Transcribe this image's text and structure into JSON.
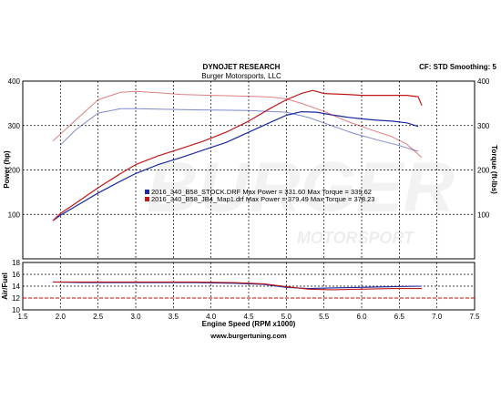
{
  "header": {
    "title": "DYNOJET RESEARCH",
    "subtitle": "Burger Motorsports, LLC",
    "settings": "CF: STD  Smoothing: 5"
  },
  "footer": {
    "url": "www.burgertuning.com"
  },
  "watermark": {
    "big": "BURGER",
    "small": "MOTORSPORT"
  },
  "colors": {
    "blue": "#1a2aa0",
    "red": "#c01818",
    "ref_red": "#dd0000",
    "grid": "#000000"
  },
  "chart_data": [
    {
      "type": "line",
      "title": "",
      "xlabel": "Engine Speed (RPM x1000)",
      "ylabel": "Power (hp)",
      "y2label": "Torque (ft-lbs)",
      "xlim": [
        1.5,
        7.5
      ],
      "ylim": [
        0,
        400
      ],
      "x_ticks": [
        1.5,
        2.0,
        2.5,
        3.0,
        3.5,
        4.0,
        4.5,
        5.0,
        5.5,
        6.0,
        6.5,
        7.0,
        7.5
      ],
      "x_tick_labels": [
        "1.5",
        "2.0",
        "2.5",
        "3.0",
        "3.5",
        "4.0",
        "4.5",
        "5.0",
        "5.5",
        "6.0",
        "6.5",
        "7.0",
        "7.5"
      ],
      "y_ticks": [
        100,
        200,
        300,
        400
      ],
      "y_tick_labels": [
        "100",
        "200",
        "300",
        "400"
      ],
      "y2_ticks": [
        100,
        200,
        300,
        400
      ],
      "y2_tick_labels": [
        "100",
        "200",
        "300",
        "400"
      ],
      "grid": true,
      "legend": {
        "placement": "center-left",
        "entries": [
          "2016_340_B58_STOCK.DRF Max Power = 331.60    Max Torque = 339.62",
          "2016_340_B58_JB4_Map1.drf Max Power = 379.49    Max Torque = 378.23"
        ]
      },
      "series": [
        {
          "color": "#1a2aa0",
          "style": "power",
          "x": [
            1.9,
            2.0,
            2.2,
            2.5,
            2.8,
            3.0,
            3.3,
            3.6,
            3.9,
            4.2,
            4.5,
            4.8,
            5.0,
            5.2,
            5.4,
            5.6,
            5.8,
            6.0,
            6.2,
            6.4,
            6.6,
            6.75
          ],
          "y": [
            86,
            98,
            118,
            148,
            175,
            192,
            212,
            228,
            245,
            262,
            285,
            308,
            323,
            331,
            330,
            324,
            319,
            315,
            312,
            310,
            306,
            298
          ]
        },
        {
          "color": "#c01818",
          "style": "power",
          "x": [
            1.9,
            2.0,
            2.2,
            2.5,
            2.8,
            3.0,
            3.3,
            3.6,
            3.9,
            4.2,
            4.5,
            4.8,
            5.0,
            5.2,
            5.35,
            5.5,
            5.8,
            6.0,
            6.3,
            6.6,
            6.75,
            6.8
          ],
          "y": [
            86,
            102,
            125,
            160,
            192,
            212,
            232,
            248,
            265,
            285,
            310,
            340,
            358,
            372,
            379,
            372,
            370,
            368,
            368,
            368,
            365,
            345
          ]
        },
        {
          "color": "#1a2aa0",
          "style": "torque",
          "x": [
            2.0,
            2.2,
            2.5,
            2.8,
            3.0,
            3.3,
            3.6,
            4.0,
            4.5,
            5.0,
            5.3,
            5.6,
            5.9,
            6.2,
            6.5,
            6.75
          ],
          "y": [
            256,
            290,
            328,
            338,
            338,
            337,
            336,
            335,
            334,
            330,
            318,
            300,
            282,
            268,
            255,
            242
          ]
        },
        {
          "color": "#c01818",
          "style": "torque",
          "x": [
            1.9,
            2.2,
            2.5,
            2.8,
            3.0,
            3.3,
            3.6,
            4.0,
            4.5,
            4.8,
            5.0,
            5.2,
            5.5,
            5.8,
            6.1,
            6.4,
            6.6,
            6.8
          ],
          "y": [
            265,
            312,
            358,
            375,
            377,
            374,
            370,
            368,
            366,
            364,
            360,
            350,
            332,
            310,
            292,
            275,
            258,
            228
          ]
        }
      ]
    },
    {
      "type": "line",
      "title": "",
      "xlabel": "",
      "ylabel": "Air/Fuel",
      "xlim": [
        1.5,
        7.5
      ],
      "ylim": [
        10,
        18
      ],
      "y_ticks": [
        10,
        12,
        14,
        16,
        18
      ],
      "y_tick_labels": [
        "10",
        "12",
        "14",
        "16",
        "18"
      ],
      "reference_line": 12,
      "grid": true,
      "series": [
        {
          "color": "#1a2aa0",
          "x": [
            1.9,
            2.3,
            2.8,
            3.3,
            3.8,
            4.3,
            4.7,
            5.0,
            5.3,
            5.6,
            6.0,
            6.4,
            6.8
          ],
          "y": [
            14.7,
            14.6,
            14.6,
            14.6,
            14.6,
            14.5,
            14.3,
            13.8,
            13.6,
            13.7,
            13.8,
            13.9,
            14.0
          ]
        },
        {
          "color": "#c01818",
          "x": [
            1.9,
            2.3,
            2.8,
            3.3,
            3.8,
            4.3,
            4.7,
            5.0,
            5.3,
            5.6,
            6.0,
            6.4,
            6.8
          ],
          "y": [
            14.7,
            14.7,
            14.7,
            14.7,
            14.7,
            14.6,
            14.4,
            13.9,
            13.5,
            13.4,
            13.5,
            13.6,
            13.6
          ]
        }
      ]
    }
  ]
}
